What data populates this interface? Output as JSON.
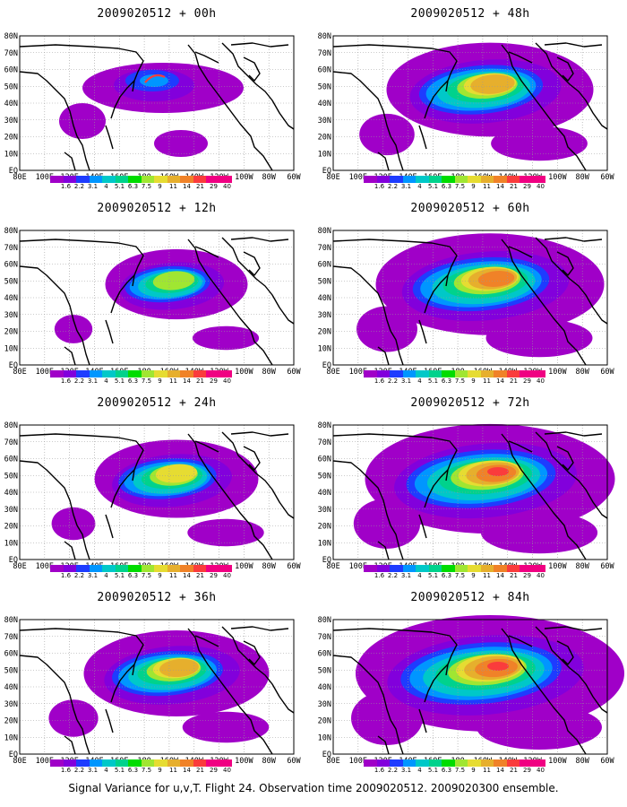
{
  "panels": [
    {
      "title": "2009020512 + 00h",
      "intensity": 0
    },
    {
      "title": "2009020512 + 48h",
      "intensity": 4
    },
    {
      "title": "2009020512 + 12h",
      "intensity": 1
    },
    {
      "title": "2009020512 + 60h",
      "intensity": 5
    },
    {
      "title": "2009020512 + 24h",
      "intensity": 2
    },
    {
      "title": "2009020512 + 72h",
      "intensity": 6
    },
    {
      "title": "2009020512 + 36h",
      "intensity": 3
    },
    {
      "title": "2009020512 + 84h",
      "intensity": 7
    }
  ],
  "lat_labels": [
    "EQ",
    "10N",
    "20N",
    "30N",
    "40N",
    "50N",
    "60N",
    "70N",
    "80N"
  ],
  "lon_labels": [
    "80E",
    "100E",
    "120E",
    "140E",
    "160E",
    "180",
    "160W",
    "140W",
    "120W",
    "100W",
    "80W",
    "60W"
  ],
  "colorbar": {
    "colors": [
      "#a000c8",
      "#8200dc",
      "#1e3cff",
      "#0096ff",
      "#00c8c8",
      "#00d28c",
      "#00dc00",
      "#a0e632",
      "#e6dc32",
      "#e6af2d",
      "#f08228",
      "#fa3c3c",
      "#f00082"
    ],
    "labels": [
      "1.6",
      "2.2",
      "3.1",
      "4",
      "5.1",
      "6.3",
      "7.5",
      "9",
      "11",
      "14",
      "21",
      "29",
      "40"
    ]
  },
  "caption": "Signal Variance for u,v,T. Flight 24. Observation time 2009020512. 2009020300 ensemble."
}
